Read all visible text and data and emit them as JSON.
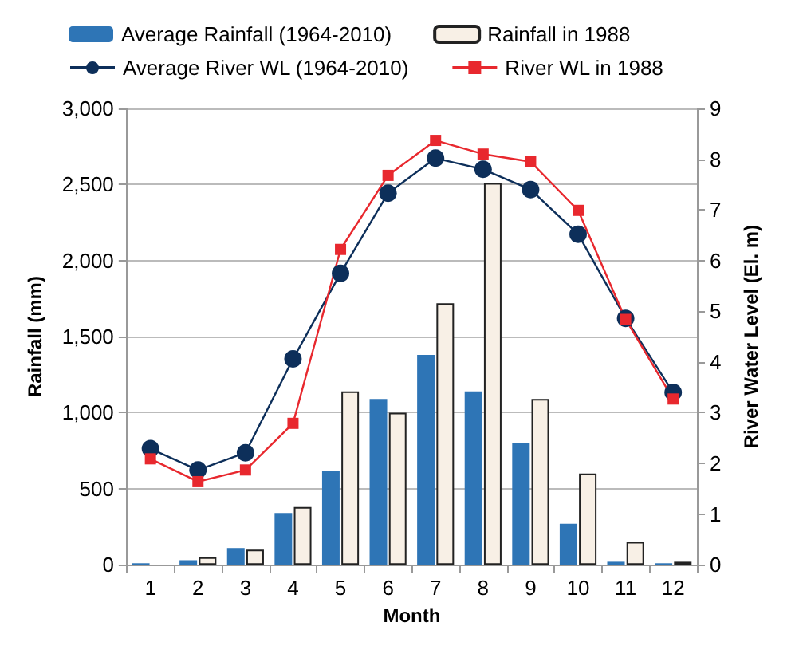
{
  "chart_data": {
    "type": "bar",
    "xlabel": "Month",
    "ylabel": "Rainfall (mm)",
    "y2label": "River Water Level (El. m)",
    "categories": [
      "1",
      "2",
      "3",
      "4",
      "5",
      "6",
      "7",
      "8",
      "9",
      "10",
      "11",
      "12"
    ],
    "series": [
      {
        "name": "Average Rainfall (1964-2010)",
        "color": "#2e75b6",
        "values": [
          10,
          30,
          110,
          340,
          620,
          1090,
          1380,
          1140,
          800,
          270,
          20,
          10
        ]
      },
      {
        "name": "Rainfall in 1988",
        "color": "#f8f0e6",
        "values": [
          null,
          50,
          100,
          380,
          1140,
          1000,
          1720,
          2510,
          1090,
          600,
          150,
          20
        ]
      },
      {
        "name": "Average River WL (1964-2010)",
        "type": "line",
        "axis": "y2",
        "marker": "circle",
        "color": "#0d2f5a",
        "values": [
          2.29,
          1.87,
          2.21,
          4.06,
          5.75,
          7.33,
          8.02,
          7.8,
          7.4,
          6.52,
          4.86,
          3.4
        ]
      },
      {
        "name": "River WL in 1988",
        "type": "line",
        "axis": "y2",
        "marker": "square",
        "color": "#e8282e",
        "values": [
          2.09,
          1.64,
          1.87,
          2.79,
          6.22,
          7.68,
          8.37,
          8.1,
          7.95,
          6.99,
          4.84,
          3.27
        ]
      }
    ],
    "ylim": [
      0,
      3000
    ],
    "yticks": [
      0,
      500,
      {
        "value": 1000,
        "label": "1,000"
      },
      {
        "value": 1500,
        "label": "1,500"
      },
      {
        "value": 2000,
        "label": "2,000"
      },
      {
        "value": 2500,
        "label": "2,500"
      },
      {
        "value": 3000,
        "label": "3,000"
      }
    ],
    "y2lim": [
      0,
      9
    ],
    "y2ticks": [
      0,
      1,
      2,
      3,
      4,
      5,
      6,
      7,
      8,
      9
    ],
    "grid": "y",
    "legend": "top"
  }
}
